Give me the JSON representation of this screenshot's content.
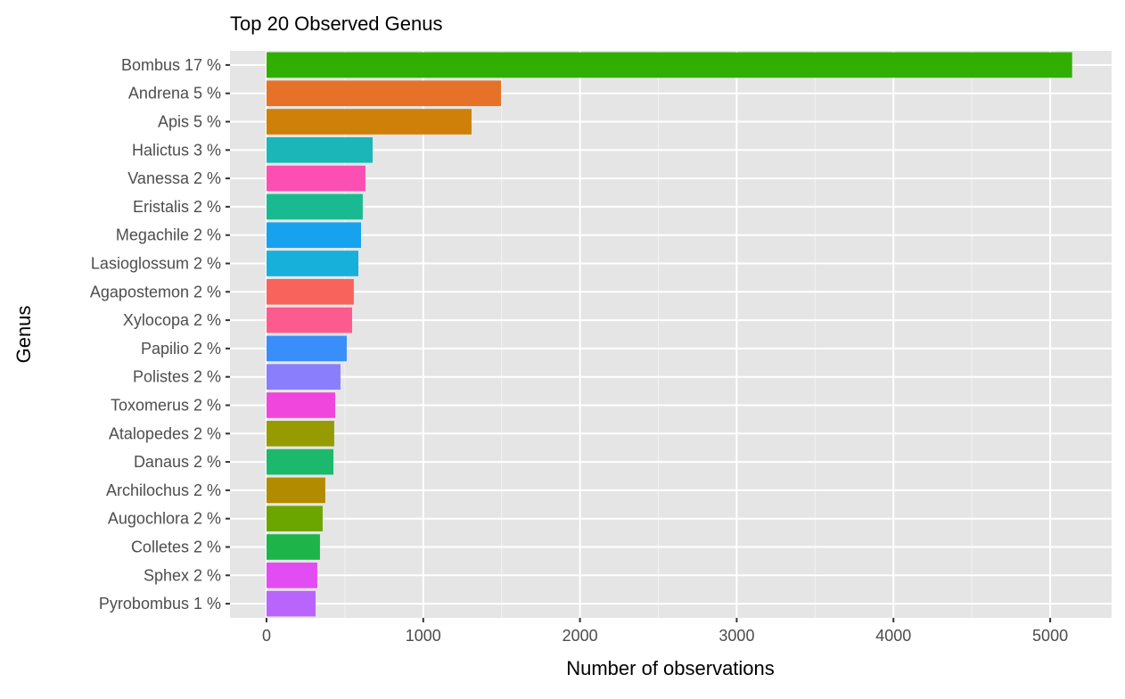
{
  "chart_data": {
    "type": "bar",
    "orientation": "horizontal",
    "title": "Top 20 Observed Genus",
    "xlabel": "Number of observations",
    "ylabel": "Genus",
    "xlim": [
      -233,
      5392
    ],
    "xticks": [
      0,
      1000,
      2000,
      3000,
      4000,
      5000
    ],
    "xtick_labels": [
      "0",
      "1000",
      "2000",
      "3000",
      "4000",
      "5000"
    ],
    "grid": true,
    "legend": "none",
    "categories": [
      "Bombus 17 %",
      "Andrena 5 %",
      "Apis 5 %",
      "Halictus 3 %",
      "Vanessa 2 %",
      "Eristalis 2 %",
      "Megachile 2 %",
      "Lasioglossum 2 %",
      "Agapostemon 2 %",
      "Xylocopa 2 %",
      "Papilio 2 %",
      "Polistes 2 %",
      "Toxomerus 2 %",
      "Atalopedes 2 %",
      "Danaus 2 %",
      "Archilochus 2 %",
      "Augochlora 2 %",
      "Colletes 2 %",
      "Sphex 2 %",
      "Pyrobombus 1 %"
    ],
    "values": [
      5140,
      1496,
      1308,
      677,
      631,
      614,
      603,
      586,
      557,
      546,
      512,
      472,
      438,
      432,
      427,
      375,
      358,
      341,
      324,
      313
    ],
    "colors": [
      "#31AF00",
      "#E6722A",
      "#CF8008",
      "#1AB6B8",
      "#FB4FB3",
      "#19BA92",
      "#17A2F0",
      "#16B0DA",
      "#F8635C",
      "#FB5B8E",
      "#3A8EF9",
      "#8A7EFC",
      "#F046DD",
      "#969C00",
      "#1CB96C",
      "#B38B00",
      "#6BA500",
      "#1DB54A",
      "#E24CF3",
      "#B964FC"
    ],
    "panel_background": "#E5E5E5"
  }
}
